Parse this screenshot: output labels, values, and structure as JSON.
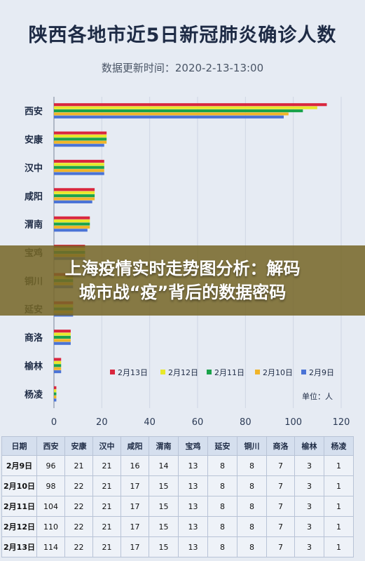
{
  "title": "陕西各地市近5日新冠肺炎确诊人数",
  "subtitle": "数据更新时间：2020-2-13-13:00",
  "overlay": {
    "line1": "上海疫情实时走势图分析：解码",
    "line2": "城市战“疫”背后的数据密码"
  },
  "colors": {
    "background": "#e6ebf3",
    "series": [
      "#d9263d",
      "#e8e82a",
      "#1aa34a",
      "#f0b429",
      "#4a73d6"
    ]
  },
  "chart_data": {
    "type": "bar",
    "orientation": "horizontal",
    "categories": [
      "西安",
      "安康",
      "汉中",
      "咸阳",
      "渭南",
      "宝鸡",
      "铜川",
      "延安",
      "商洛",
      "榆林",
      "杨凌"
    ],
    "series": [
      {
        "name": "2月13日",
        "values": [
          114,
          22,
          21,
          17,
          15,
          13,
          8,
          8,
          7,
          3,
          1
        ]
      },
      {
        "name": "2月12日",
        "values": [
          110,
          22,
          21,
          17,
          15,
          13,
          8,
          8,
          7,
          3,
          1
        ]
      },
      {
        "name": "2月11日",
        "values": [
          104,
          22,
          21,
          17,
          15,
          13,
          8,
          8,
          7,
          3,
          1
        ]
      },
      {
        "name": "2月10日",
        "values": [
          98,
          22,
          21,
          17,
          15,
          13,
          8,
          8,
          7,
          3,
          1
        ]
      },
      {
        "name": "2月9日",
        "values": [
          96,
          21,
          21,
          16,
          14,
          13,
          8,
          8,
          7,
          3,
          1
        ]
      }
    ],
    "x_ticks": [
      0,
      20,
      40,
      60,
      80,
      100,
      120
    ],
    "xlim": [
      0,
      120
    ],
    "unit": "单位：人",
    "legend_position": "bottom-right",
    "grid": true
  },
  "table": {
    "headers": [
      "日期",
      "西安",
      "安康",
      "汉中",
      "咸阳",
      "渭南",
      "宝鸡",
      "延安",
      "铜川",
      "商洛",
      "榆林",
      "杨凌"
    ],
    "rows": [
      [
        "2月9日",
        "96",
        "21",
        "21",
        "16",
        "14",
        "13",
        "8",
        "8",
        "7",
        "3",
        "1"
      ],
      [
        "2月10日",
        "98",
        "22",
        "21",
        "17",
        "15",
        "13",
        "8",
        "8",
        "7",
        "3",
        "1"
      ],
      [
        "2月11日",
        "104",
        "22",
        "21",
        "17",
        "15",
        "13",
        "8",
        "8",
        "7",
        "3",
        "1"
      ],
      [
        "2月12日",
        "110",
        "22",
        "21",
        "17",
        "15",
        "13",
        "8",
        "8",
        "7",
        "3",
        "1"
      ],
      [
        "2月13日",
        "114",
        "22",
        "21",
        "17",
        "15",
        "13",
        "8",
        "8",
        "7",
        "3",
        "1"
      ]
    ]
  }
}
